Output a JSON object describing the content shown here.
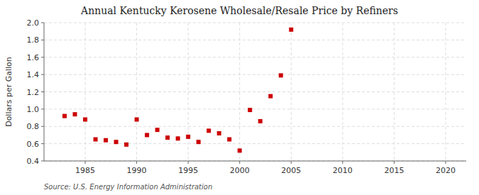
{
  "chart_data": {
    "type": "scatter",
    "title": "Annual Kentucky Kerosene Wholesale/Resale Price by Refiners",
    "ylabel": "Dollars per Gallon",
    "annotation": "Source: U.S. Energy Information Administration",
    "x": [
      1983,
      1984,
      1985,
      1986,
      1987,
      1988,
      1989,
      1990,
      1991,
      1992,
      1993,
      1994,
      1995,
      1996,
      1997,
      1998,
      1999,
      2000,
      2001,
      2002,
      2003,
      2004,
      2005
    ],
    "values": [
      0.92,
      0.94,
      0.88,
      0.65,
      0.64,
      0.62,
      0.59,
      0.88,
      0.7,
      0.76,
      0.67,
      0.66,
      0.68,
      0.62,
      0.75,
      0.72,
      0.65,
      0.52,
      0.99,
      0.86,
      1.15,
      1.39,
      1.92
    ],
    "color": "#cc0000",
    "marker": "square",
    "xlim": [
      1981,
      2022
    ],
    "ylim": [
      0.4,
      2.0
    ],
    "xticks": [
      1985,
      1990,
      1995,
      2000,
      2005,
      2010,
      2015,
      2020
    ],
    "yticks": [
      0.4,
      0.6,
      0.8,
      {
        "value": 1.0,
        "label": "1.0"
      },
      1.2,
      1.4,
      1.6,
      1.8,
      {
        "value": 2.0,
        "label": "2.0"
      }
    ],
    "grid": true
  }
}
